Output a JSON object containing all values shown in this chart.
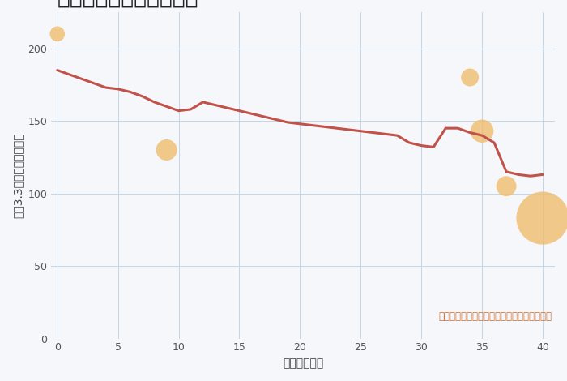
{
  "xlabel": "築年数（年）",
  "ylabel": "坪（3.3㎡）単価（万円）",
  "annotation": "円の大きさは、取引のあった物件面積を示す",
  "line_x": [
    0,
    1,
    2,
    3,
    4,
    5,
    6,
    7,
    8,
    9,
    10,
    11,
    12,
    13,
    14,
    15,
    16,
    17,
    18,
    19,
    20,
    21,
    22,
    23,
    24,
    25,
    26,
    27,
    28,
    29,
    30,
    31,
    32,
    33,
    34,
    35,
    36,
    37,
    38,
    39,
    40
  ],
  "line_y": [
    185,
    182,
    179,
    176,
    173,
    172,
    170,
    167,
    163,
    160,
    157,
    158,
    163,
    161,
    159,
    157,
    155,
    153,
    151,
    149,
    148,
    147,
    146,
    145,
    144,
    143,
    142,
    141,
    140,
    135,
    133,
    132,
    145,
    145,
    142,
    140,
    135,
    115,
    113,
    112,
    113
  ],
  "scatter_x": [
    0,
    9,
    34,
    35,
    37,
    40
  ],
  "scatter_y": [
    210,
    130,
    180,
    143,
    105,
    83
  ],
  "scatter_sizes": [
    180,
    350,
    250,
    420,
    320,
    2200
  ],
  "line_color": "#c0524a",
  "scatter_color": "#f0be70",
  "scatter_alpha": 0.82,
  "bg_color": "#f5f7fb",
  "grid_color": "#c5d5e5",
  "xlim": [
    -0.5,
    41
  ],
  "ylim": [
    0,
    225
  ],
  "xticks": [
    0,
    5,
    10,
    15,
    20,
    25,
    30,
    35,
    40
  ],
  "yticks": [
    0,
    50,
    100,
    150,
    200
  ],
  "title_fontsize": 19,
  "axis_label_fontsize": 10,
  "tick_fontsize": 9,
  "annotation_fontsize": 8.5,
  "annotation_color": "#d07030"
}
